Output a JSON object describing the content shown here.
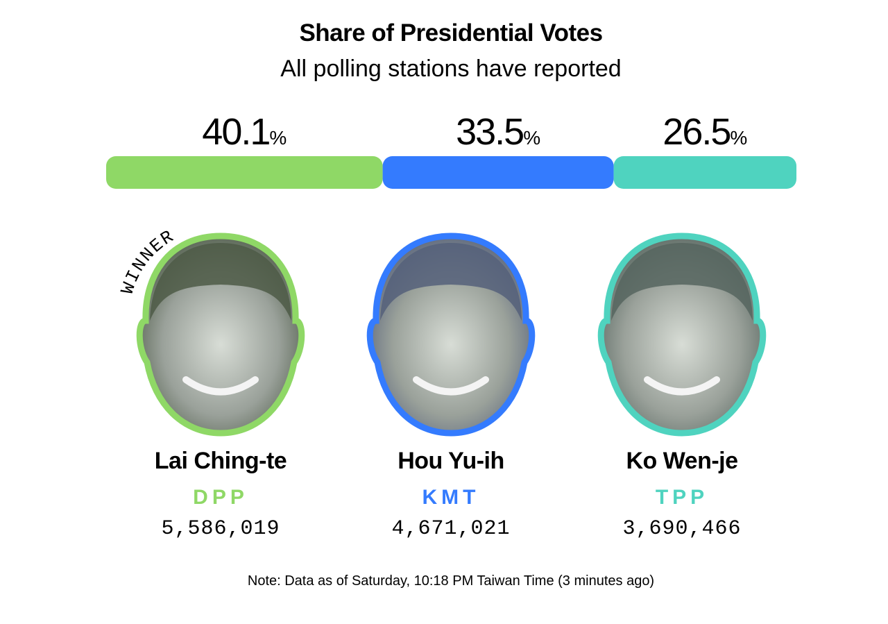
{
  "title": "Share of Presidential Votes",
  "subtitle": "All polling stations have reported",
  "chart_data": {
    "type": "bar",
    "orientation": "stacked-horizontal",
    "categories": [
      "DPP",
      "KMT",
      "TPP"
    ],
    "values": [
      40.1,
      33.5,
      26.5
    ],
    "labels": [
      "40.1",
      "33.5",
      "26.5"
    ],
    "unit": "%",
    "colors": [
      "#8fd866",
      "#347bfe",
      "#4fd3bf"
    ]
  },
  "candidates": [
    {
      "name": "Lai Ching-te",
      "party": "DPP",
      "votes": "5,586,019",
      "color": "#8fd866",
      "badge": "WINNER",
      "photo_tint": "#4d5a47"
    },
    {
      "name": "Hou Yu-ih",
      "party": "KMT",
      "votes": "4,671,021",
      "color": "#347bfe",
      "photo_tint": "#55607a"
    },
    {
      "name": "Ko Wen-je",
      "party": "TPP",
      "votes": "3,690,466",
      "color": "#4fd3bf",
      "photo_tint": "#56655f"
    }
  ],
  "note": "Note: Data as of Saturday, 10:18 PM Taiwan Time (3 minutes ago)"
}
